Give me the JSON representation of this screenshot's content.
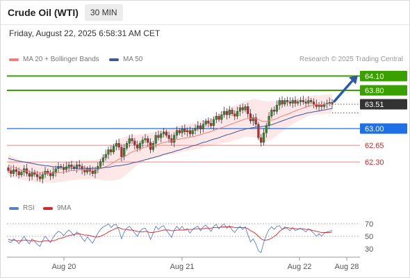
{
  "header": {
    "title": "Crude Oil (WTI)",
    "timeframe": "30 MIN"
  },
  "timestamp": "Friday, August 22, 2025 6:58:31 AM CET",
  "legend": {
    "ma20": "MA 20 + Bollinger Bands",
    "ma50": "MA 50",
    "credit": "Research © 2025 Trading Central"
  },
  "sub_legend": {
    "rsi": "RSI",
    "ma9": "9MA"
  },
  "colors": {
    "ma20": "#f08080",
    "ma50": "#3a5a9c",
    "bollinger_fill": "#fde3e3",
    "resistance": "#3aa000",
    "pivot": "#1f6fe5",
    "support": "#f08080",
    "current": "#333333",
    "candle_up": "#2e8b2e",
    "candle_down": "#c62828",
    "rsi": "#5b7fd0",
    "rsi_ma": "#d62728",
    "arrow": "#2a5aa8"
  },
  "chart_data": [
    {
      "type": "candlestick",
      "title": "Crude Oil (WTI)",
      "timeframe": "30 MIN",
      "x_ticks": [
        "Aug 20",
        "Aug 21",
        "Aug 22",
        "Aug 28"
      ],
      "ylim": [
        61.85,
        64.25
      ],
      "levels": [
        {
          "value": 64.1,
          "label": "64.10",
          "kind": "resistance"
        },
        {
          "value": 63.8,
          "label": "63.80",
          "kind": "resistance"
        },
        {
          "value": 63.51,
          "label": "63.51",
          "kind": "current"
        },
        {
          "value": 63.0,
          "label": "63.00",
          "kind": "pivot"
        },
        {
          "value": 62.65,
          "label": "62.65",
          "kind": "support"
        },
        {
          "value": 62.3,
          "label": "62.30",
          "kind": "support"
        }
      ],
      "close": [
        62.12,
        62.06,
        62.14,
        62.1,
        62.03,
        62.09,
        62.16,
        62.06,
        62.0,
        62.09,
        62.04,
        61.99,
        61.95,
        62.04,
        62.11,
        62.06,
        62.01,
        62.09,
        62.16,
        62.21,
        62.19,
        62.14,
        62.2,
        62.24,
        62.2,
        62.16,
        62.24,
        62.21,
        62.14,
        62.09,
        62.16,
        62.11,
        62.06,
        62.14,
        62.21,
        62.31,
        62.39,
        62.46,
        62.56,
        62.51,
        62.63,
        62.69,
        62.61,
        62.41,
        62.59,
        62.69,
        62.79,
        62.74,
        62.66,
        62.59,
        62.69,
        62.76,
        62.79,
        62.71,
        62.56,
        62.69,
        62.86,
        62.81,
        62.89,
        62.93,
        62.86,
        62.79,
        62.71,
        62.86,
        62.96,
        62.91,
        62.99,
        62.93,
        62.96,
        62.89,
        62.96,
        63.01,
        63.06,
        62.99,
        63.09,
        63.16,
        63.11,
        63.06,
        63.19,
        63.26,
        63.19,
        63.29,
        63.36,
        63.29,
        63.39,
        63.31,
        63.26,
        63.36,
        63.44,
        63.39,
        63.46,
        63.31,
        63.16,
        63.23,
        63.09,
        62.81,
        62.71,
        62.91,
        63.06,
        63.26,
        63.39,
        63.36,
        63.49,
        63.59,
        63.51,
        63.59,
        63.56,
        63.53,
        63.59,
        63.53,
        63.56,
        63.59,
        63.56,
        63.53,
        63.59,
        63.56,
        63.51,
        63.46,
        63.49,
        63.46,
        63.51,
        63.53,
        63.55,
        63.51
      ],
      "ma20": [
        62.24,
        62.21,
        62.19,
        62.17,
        62.15,
        62.13,
        62.12,
        62.11,
        62.1,
        62.09,
        62.08,
        62.07,
        62.07,
        62.07,
        62.07,
        62.07,
        62.07,
        62.07,
        62.07,
        62.08,
        62.08,
        62.09,
        62.1,
        62.11,
        62.12,
        62.12,
        62.13,
        62.14,
        62.14,
        62.14,
        62.14,
        62.14,
        62.14,
        62.14,
        62.15,
        62.16,
        62.18,
        62.2,
        62.23,
        62.26,
        62.29,
        62.33,
        62.36,
        62.38,
        62.41,
        62.44,
        62.48,
        62.51,
        62.53,
        62.55,
        62.57,
        62.59,
        62.61,
        62.62,
        62.63,
        62.64,
        62.66,
        62.67,
        62.69,
        62.71,
        62.72,
        62.73,
        62.74,
        62.75,
        62.77,
        62.78,
        62.79,
        62.8,
        62.81,
        62.82,
        62.83,
        62.84,
        62.86,
        62.87,
        62.89,
        62.91,
        62.92,
        62.94,
        62.96,
        62.98,
        63.0,
        63.02,
        63.04,
        63.06,
        63.08,
        63.1,
        63.12,
        63.14,
        63.16,
        63.18,
        63.2,
        63.21,
        63.21,
        63.22,
        63.21,
        63.19,
        63.16,
        63.15,
        63.15,
        63.16,
        63.18,
        63.19,
        63.21,
        63.24,
        63.26,
        63.28,
        63.3,
        63.32,
        63.35,
        63.37,
        63.39,
        63.41,
        63.43,
        63.45,
        63.47,
        63.48,
        63.49,
        63.5,
        63.5,
        63.5,
        63.51,
        63.51,
        63.52,
        63.52
      ],
      "ma50": [
        62.38,
        62.36,
        62.35,
        62.33,
        62.32,
        62.31,
        62.3,
        62.29,
        62.28,
        62.27,
        62.26,
        62.25,
        62.24,
        62.23,
        62.22,
        62.22,
        62.21,
        62.2,
        62.2,
        62.19,
        62.19,
        62.18,
        62.18,
        62.18,
        62.17,
        62.17,
        62.17,
        62.17,
        62.17,
        62.17,
        62.17,
        62.17,
        62.17,
        62.17,
        62.17,
        62.18,
        62.18,
        62.19,
        62.19,
        62.2,
        62.21,
        62.22,
        62.22,
        62.23,
        62.24,
        62.25,
        62.26,
        62.28,
        62.29,
        62.3,
        62.32,
        62.33,
        62.35,
        62.36,
        62.38,
        62.39,
        62.41,
        62.42,
        62.44,
        62.46,
        62.47,
        62.49,
        62.5,
        62.52,
        62.54,
        62.55,
        62.57,
        62.59,
        62.6,
        62.62,
        62.64,
        62.65,
        62.67,
        62.69,
        62.71,
        62.72,
        62.74,
        62.76,
        62.78,
        62.79,
        62.81,
        62.83,
        62.85,
        62.87,
        62.88,
        62.9,
        62.92,
        62.94,
        62.96,
        62.97,
        62.99,
        63.0,
        63.01,
        63.02,
        63.03,
        63.03,
        63.04,
        63.05,
        63.06,
        63.07,
        63.08,
        63.1,
        63.12,
        63.14,
        63.16,
        63.18,
        63.2,
        63.22,
        63.24,
        63.26,
        63.27,
        63.29,
        63.3,
        63.32,
        63.33,
        63.34,
        63.35,
        63.36,
        63.37,
        63.38,
        63.39,
        63.4,
        63.41,
        63.42
      ],
      "bollinger_width": [
        0.23,
        0.22,
        0.21,
        0.21,
        0.2,
        0.2,
        0.2,
        0.2,
        0.2,
        0.2,
        0.2,
        0.2,
        0.2,
        0.2,
        0.2,
        0.2,
        0.2,
        0.2,
        0.2,
        0.2,
        0.2,
        0.2,
        0.2,
        0.2,
        0.2,
        0.2,
        0.2,
        0.2,
        0.2,
        0.2,
        0.2,
        0.2,
        0.2,
        0.2,
        0.21,
        0.23,
        0.26,
        0.29,
        0.32,
        0.35,
        0.38,
        0.4,
        0.42,
        0.42,
        0.41,
        0.4,
        0.38,
        0.36,
        0.34,
        0.32,
        0.3,
        0.29,
        0.28,
        0.28,
        0.28,
        0.28,
        0.28,
        0.28,
        0.28,
        0.28,
        0.28,
        0.28,
        0.28,
        0.28,
        0.28,
        0.28,
        0.28,
        0.28,
        0.28,
        0.28,
        0.28,
        0.28,
        0.28,
        0.28,
        0.28,
        0.28,
        0.28,
        0.29,
        0.3,
        0.31,
        0.32,
        0.33,
        0.34,
        0.35,
        0.36,
        0.36,
        0.37,
        0.37,
        0.37,
        0.37,
        0.37,
        0.38,
        0.39,
        0.4,
        0.41,
        0.42,
        0.43,
        0.43,
        0.42,
        0.41,
        0.4,
        0.38,
        0.36,
        0.34,
        0.32,
        0.3,
        0.28,
        0.27,
        0.26,
        0.25,
        0.24,
        0.23,
        0.22,
        0.21,
        0.21,
        0.2,
        0.2,
        0.2,
        0.2,
        0.2,
        0.2,
        0.2,
        0.2,
        0.2
      ],
      "forecast_target": 64.1
    },
    {
      "type": "line",
      "title": "RSI",
      "ylim": [
        20,
        80
      ],
      "y_ticks": [
        70,
        50,
        30
      ],
      "series": [
        {
          "name": "RSI",
          "values": [
            42,
            40,
            46,
            43,
            38,
            44,
            50,
            43,
            38,
            46,
            42,
            37,
            34,
            43,
            50,
            45,
            40,
            48,
            54,
            58,
            56,
            51,
            56,
            60,
            56,
            51,
            57,
            54,
            47,
            42,
            49,
            44,
            39,
            47,
            55,
            61,
            65,
            67,
            70,
            64,
            68,
            69,
            60,
            46,
            57,
            63,
            66,
            61,
            55,
            50,
            58,
            62,
            63,
            56,
            45,
            55,
            66,
            61,
            65,
            67,
            60,
            54,
            48,
            60,
            66,
            61,
            66,
            60,
            62,
            55,
            61,
            64,
            66,
            59,
            65,
            68,
            63,
            58,
            66,
            69,
            62,
            67,
            70,
            63,
            67,
            60,
            56,
            62,
            66,
            61,
            65,
            52,
            41,
            46,
            38,
            27,
            24,
            40,
            52,
            61,
            65,
            61,
            66,
            67,
            61,
            65,
            62,
            59,
            64,
            59,
            61,
            63,
            60,
            57,
            62,
            59,
            55,
            50,
            54,
            50,
            55,
            57,
            58,
            60
          ]
        },
        {
          "name": "9MA",
          "values": [
            45,
            44,
            44,
            43,
            43,
            43,
            44,
            44,
            43,
            43,
            43,
            42,
            41,
            42,
            43,
            43,
            42,
            43,
            44,
            46,
            47,
            48,
            50,
            51,
            52,
            53,
            54,
            54,
            53,
            52,
            52,
            51,
            50,
            49,
            49,
            50,
            52,
            54,
            57,
            59,
            61,
            63,
            64,
            62,
            61,
            61,
            60,
            60,
            59,
            58,
            57,
            57,
            58,
            57,
            56,
            56,
            57,
            58,
            59,
            60,
            60,
            60,
            59,
            59,
            60,
            60,
            60,
            60,
            61,
            61,
            61,
            62,
            62,
            62,
            62,
            63,
            63,
            63,
            64,
            64,
            64,
            65,
            65,
            65,
            65,
            65,
            64,
            64,
            64,
            64,
            64,
            62,
            59,
            57,
            54,
            50,
            46,
            44,
            44,
            45,
            47,
            50,
            53,
            58,
            61,
            63,
            64,
            63,
            63,
            62,
            62,
            62,
            62,
            61,
            61,
            60,
            59,
            58,
            57,
            56,
            56,
            56,
            56,
            57
          ]
        }
      ]
    }
  ]
}
